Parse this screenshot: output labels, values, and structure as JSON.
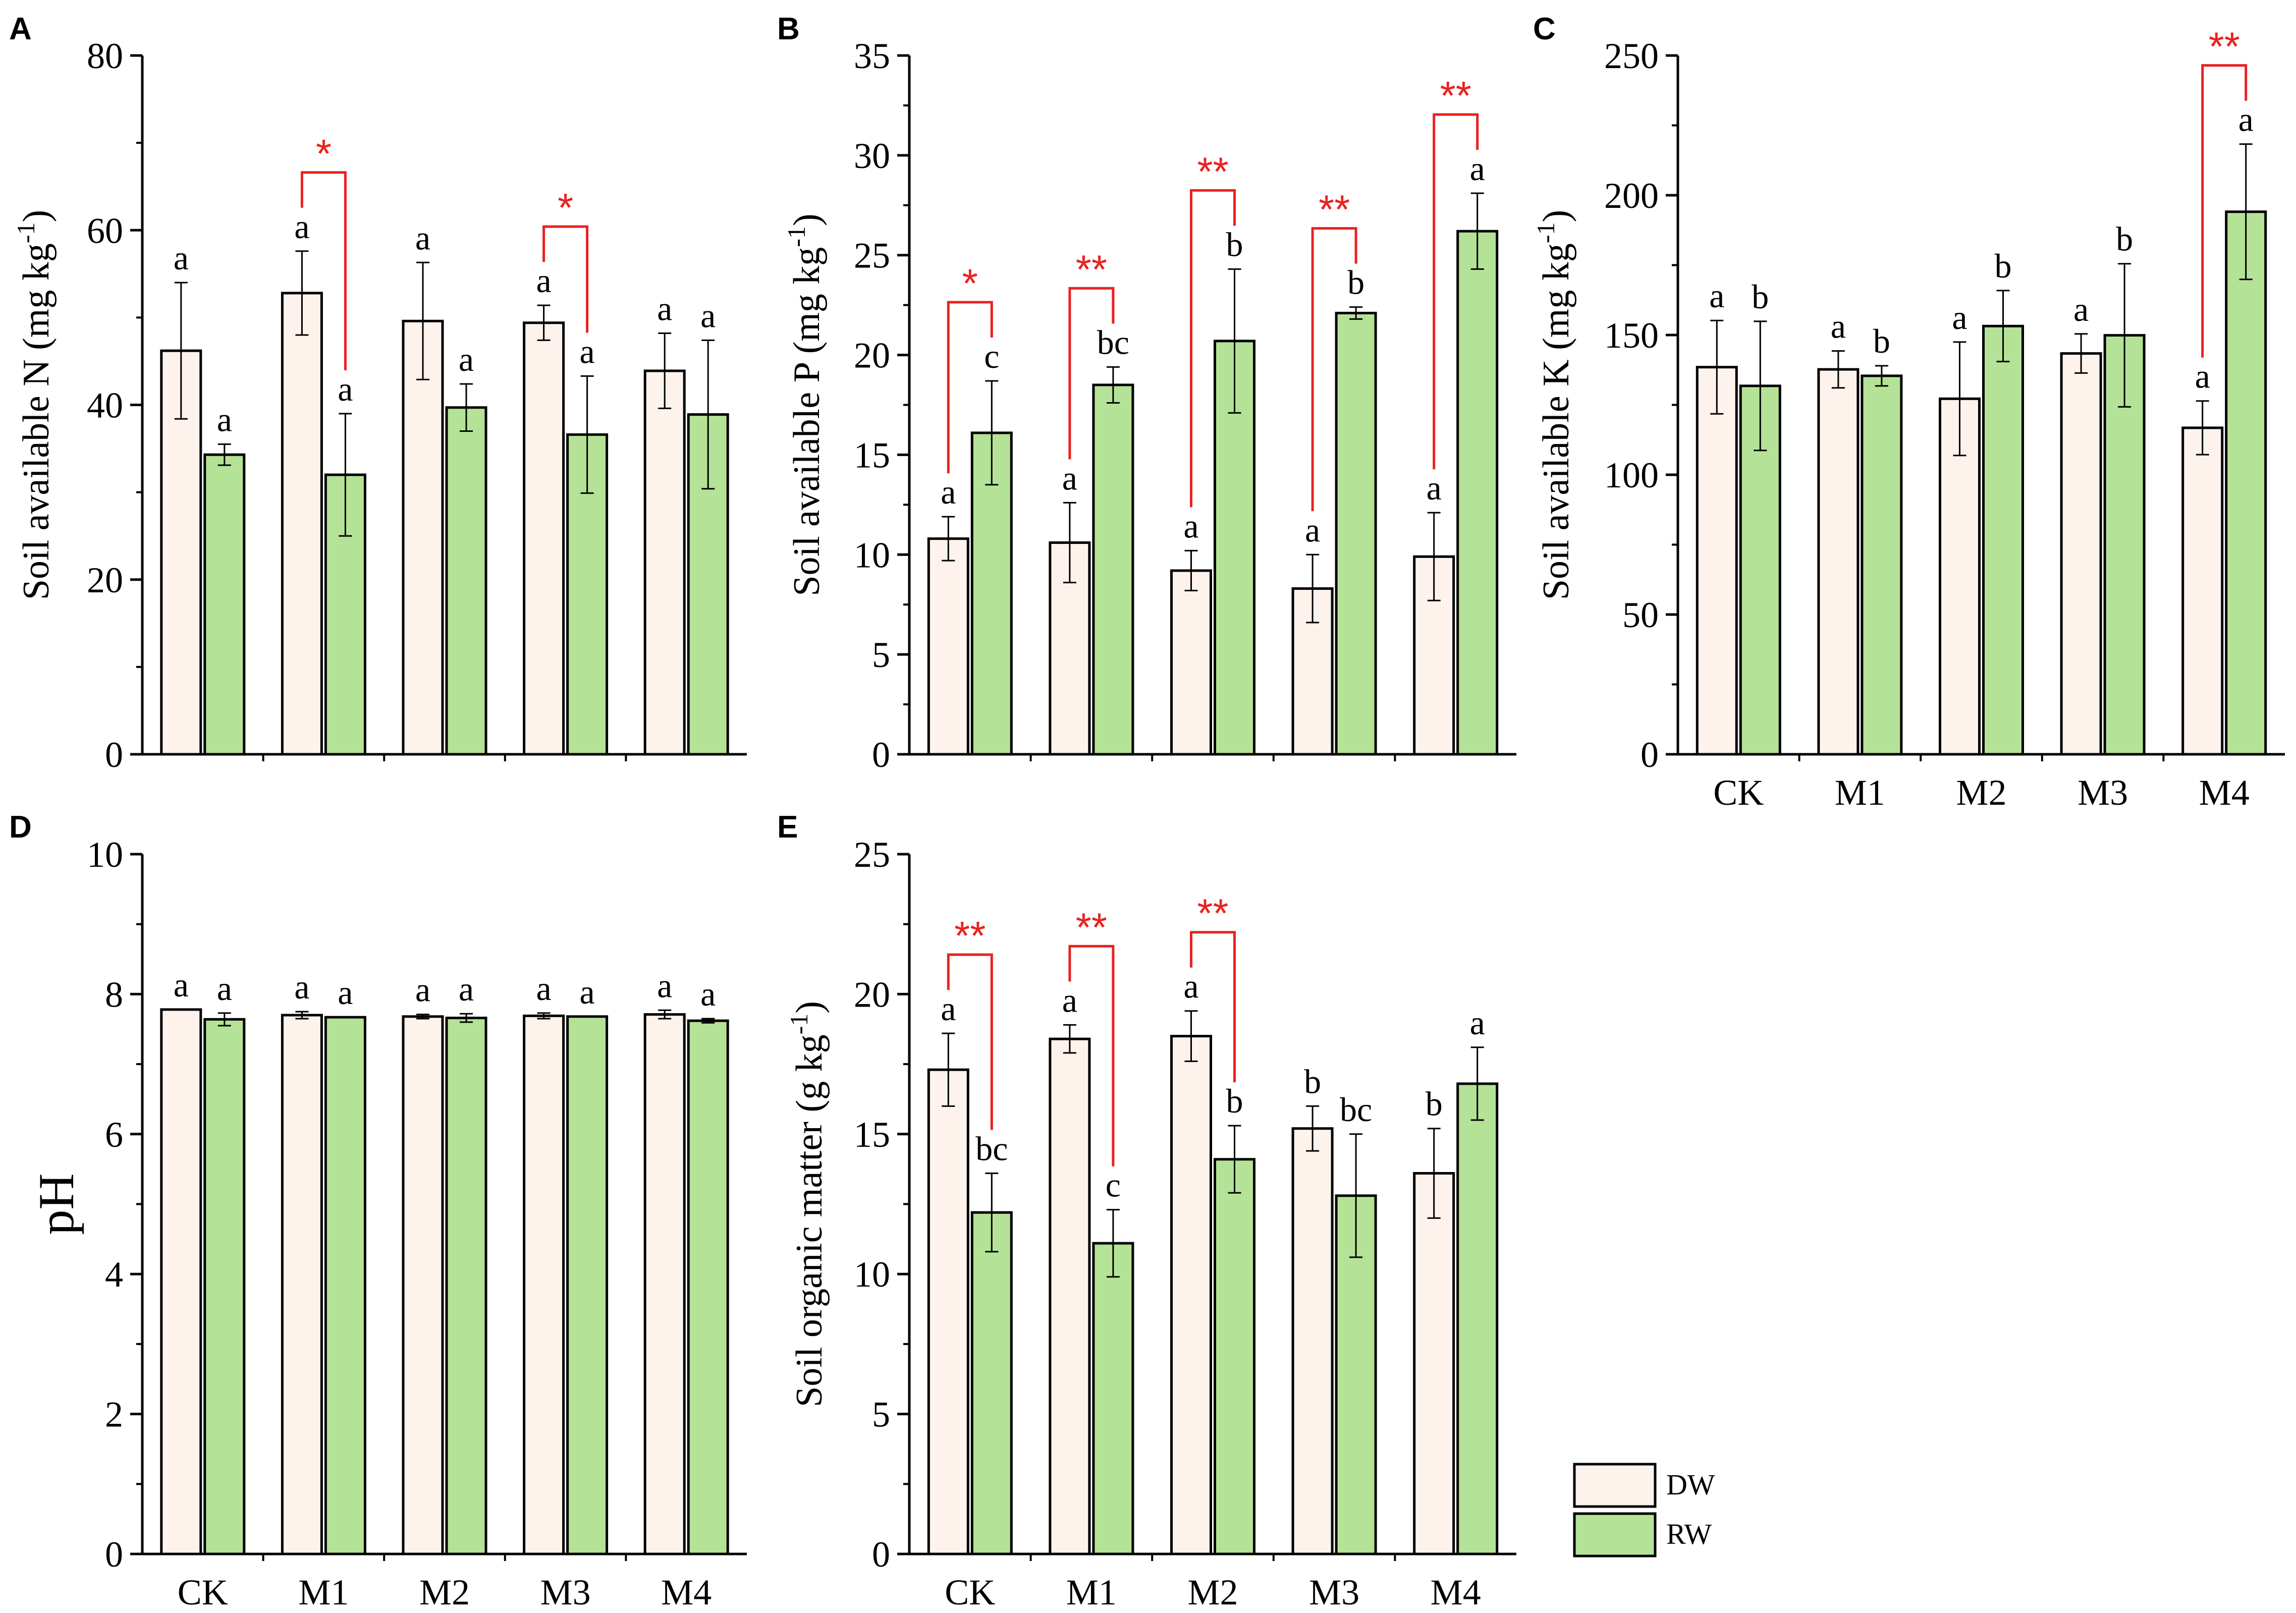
{
  "colors": {
    "DW": "#fdf2ec",
    "RW": "#b4e296",
    "sig": "#e8221f",
    "stroke": "#000000"
  },
  "legend": {
    "items": [
      {
        "key": "DW",
        "label": "DW"
      },
      {
        "key": "RW",
        "label": "RW"
      }
    ]
  },
  "chart_data": [
    {
      "panel": "A",
      "type": "bar",
      "title": "",
      "xlabel": "",
      "ylabel": "Soil available N (mg kg-1)",
      "ylabel_main": "Soil available N (mg kg",
      "ylabel_sup": "-1",
      "ylabel_end": ")",
      "ylim": [
        0,
        80
      ],
      "yticks": [
        0,
        20,
        40,
        60,
        80
      ],
      "show_categories": false,
      "categories": [
        "CK",
        "M1",
        "M2",
        "M3",
        "M4"
      ],
      "series": [
        {
          "name": "DW",
          "values": [
            46.2,
            52.8,
            49.6,
            49.4,
            43.9
          ],
          "errors": [
            7.8,
            4.8,
            6.7,
            2.0,
            4.3
          ],
          "letters": [
            "a",
            "a",
            "a",
            "a",
            "a"
          ]
        },
        {
          "name": "RW",
          "values": [
            34.3,
            32.0,
            39.7,
            36.6,
            38.9
          ],
          "errors": [
            1.2,
            7.0,
            2.7,
            6.7,
            8.5
          ],
          "letters": [
            "a",
            "a",
            "a",
            "a",
            "a"
          ]
        }
      ],
      "significance": [
        {
          "category": "M1",
          "label": "*"
        },
        {
          "category": "M3",
          "label": "*"
        }
      ]
    },
    {
      "panel": "B",
      "type": "bar",
      "title": "",
      "xlabel": "",
      "ylabel": "Soil available P (mg kg-1)",
      "ylabel_main": "Soil available P (mg kg",
      "ylabel_sup": "-1",
      "ylabel_end": ")",
      "ylim": [
        0,
        35
      ],
      "yticks": [
        0,
        5,
        10,
        15,
        20,
        25,
        30,
        35
      ],
      "show_categories": false,
      "categories": [
        "CK",
        "M1",
        "M2",
        "M3",
        "M4"
      ],
      "series": [
        {
          "name": "DW",
          "values": [
            10.8,
            10.6,
            9.2,
            8.3,
            9.9
          ],
          "errors": [
            1.1,
            2.0,
            1.0,
            1.7,
            2.2
          ],
          "letters": [
            "a",
            "a",
            "a",
            "a",
            "a"
          ]
        },
        {
          "name": "RW",
          "values": [
            16.1,
            18.5,
            20.7,
            22.1,
            26.2
          ],
          "errors": [
            2.6,
            0.9,
            3.6,
            0.3,
            1.9
          ],
          "letters": [
            "c",
            "bc",
            "b",
            "b",
            "a"
          ]
        }
      ],
      "significance": [
        {
          "category": "CK",
          "label": "*"
        },
        {
          "category": "M1",
          "label": "**"
        },
        {
          "category": "M2",
          "label": "**"
        },
        {
          "category": "M3",
          "label": "**"
        },
        {
          "category": "M4",
          "label": "**"
        }
      ]
    },
    {
      "panel": "C",
      "type": "bar",
      "title": "",
      "xlabel": "",
      "ylabel": "Soil available K (mg kg-1)",
      "ylabel_main": "Soil available K (mg kg",
      "ylabel_sup": "-1",
      "ylabel_end": ")",
      "ylim": [
        0,
        250
      ],
      "yticks": [
        0,
        50,
        100,
        150,
        200,
        250
      ],
      "show_categories": true,
      "categories": [
        "CK",
        "M1",
        "M2",
        "M3",
        "M4"
      ],
      "series": [
        {
          "name": "DW",
          "values": [
            138.5,
            137.7,
            127.2,
            143.4,
            116.8
          ],
          "errors": [
            16.7,
            6.6,
            20.3,
            7.0,
            9.6
          ],
          "letters": [
            "a",
            "a",
            "a",
            "a",
            "a"
          ]
        },
        {
          "name": "RW",
          "values": [
            131.8,
            135.4,
            153.2,
            149.9,
            194.1
          ],
          "errors": [
            23.1,
            3.6,
            12.7,
            25.6,
            24.2
          ],
          "letters": [
            "b",
            "b",
            "b",
            "b",
            "a"
          ]
        }
      ],
      "significance": [
        {
          "category": "M4",
          "label": "**"
        }
      ]
    },
    {
      "panel": "D",
      "type": "bar",
      "title": "",
      "xlabel": "",
      "ylabel": "pH",
      "ylabel_main": "pH",
      "ylabel_sup": "",
      "ylabel_end": "",
      "ylim": [
        0,
        10
      ],
      "yticks": [
        0,
        2,
        4,
        6,
        8,
        10
      ],
      "show_categories": true,
      "categories": [
        "CK",
        "M1",
        "M2",
        "M3",
        "M4"
      ],
      "series": [
        {
          "name": "DW",
          "values": [
            7.78,
            7.7,
            7.68,
            7.69,
            7.71
          ],
          "errors": [
            0.0,
            0.05,
            0.03,
            0.04,
            0.06
          ],
          "letters": [
            "a",
            "a",
            "a",
            "a",
            "a"
          ]
        },
        {
          "name": "RW",
          "values": [
            7.64,
            7.67,
            7.66,
            7.68,
            7.62
          ],
          "errors": [
            0.09,
            0.0,
            0.06,
            0.0,
            0.03
          ],
          "letters": [
            "a",
            "a",
            "a",
            "a",
            "a"
          ]
        }
      ],
      "significance": []
    },
    {
      "panel": "E",
      "type": "bar",
      "title": "",
      "xlabel": "",
      "ylabel": "Soil organic matter (g kg-1)",
      "ylabel_main": "Soil organic matter (g kg",
      "ylabel_sup": "-1",
      "ylabel_end": ")",
      "ylim": [
        0,
        25
      ],
      "yticks": [
        0,
        5,
        10,
        15,
        20,
        25
      ],
      "show_categories": true,
      "categories": [
        "CK",
        "M1",
        "M2",
        "M3",
        "M4"
      ],
      "series": [
        {
          "name": "DW",
          "values": [
            17.3,
            18.4,
            18.5,
            15.2,
            13.6
          ],
          "errors": [
            1.3,
            0.5,
            0.9,
            0.8,
            1.6
          ],
          "letters": [
            "a",
            "a",
            "a",
            "b",
            "b"
          ]
        },
        {
          "name": "RW",
          "values": [
            12.2,
            11.1,
            14.1,
            12.8,
            16.8
          ],
          "errors": [
            1.4,
            1.2,
            1.2,
            2.2,
            1.3
          ],
          "letters": [
            "bc",
            "c",
            "b",
            "bc",
            "a"
          ]
        }
      ],
      "significance": [
        {
          "category": "CK",
          "label": "**"
        },
        {
          "category": "M1",
          "label": "**"
        },
        {
          "category": "M2",
          "label": "**"
        }
      ]
    }
  ]
}
